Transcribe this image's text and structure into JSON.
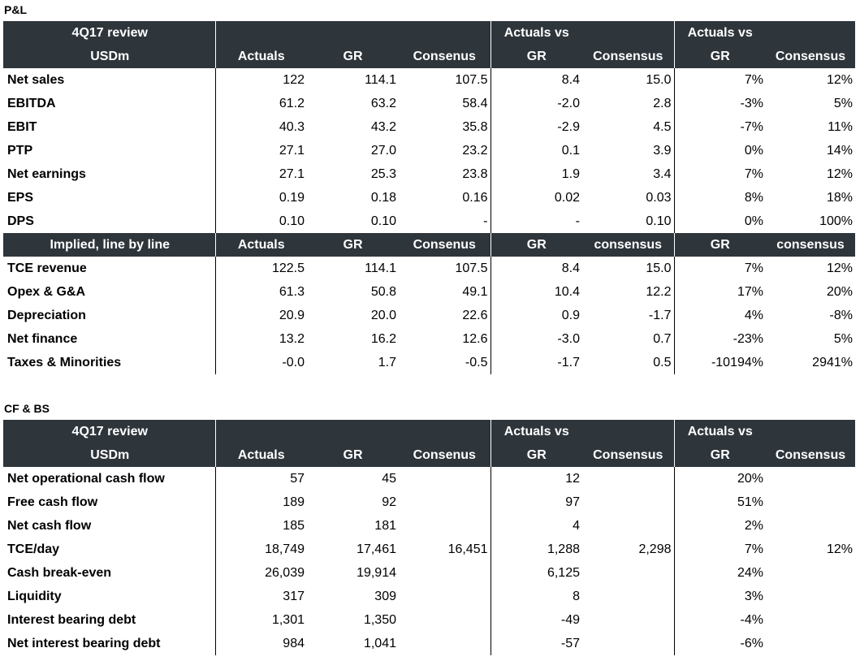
{
  "pl": {
    "section_label": "P&L",
    "header1": [
      "4Q17 review",
      "",
      "",
      "",
      "Actuals vs",
      "",
      "Actuals vs",
      ""
    ],
    "header2": [
      "USDm",
      "Actuals",
      "GR",
      "Consenus",
      "GR",
      "Consensus",
      "GR",
      "Consensus"
    ],
    "rows": [
      [
        "Net sales",
        "122",
        "114.1",
        "107.5",
        "8.4",
        "15.0",
        "7%",
        "12%"
      ],
      [
        "EBITDA",
        "61.2",
        "63.2",
        "58.4",
        "-2.0",
        "2.8",
        "-3%",
        "5%"
      ],
      [
        "EBIT",
        "40.3",
        "43.2",
        "35.8",
        "-2.9",
        "4.5",
        "-7%",
        "11%"
      ],
      [
        "PTP",
        "27.1",
        "27.0",
        "23.2",
        "0.1",
        "3.9",
        "0%",
        "14%"
      ],
      [
        "Net earnings",
        "27.1",
        "25.3",
        "23.8",
        "1.9",
        "3.4",
        "7%",
        "12%"
      ],
      [
        "EPS",
        "0.19",
        "0.18",
        "0.16",
        "0.02",
        "0.03",
        "8%",
        "18%"
      ],
      [
        "DPS",
        "0.10",
        "0.10",
        "-",
        "-",
        "0.10",
        "0%",
        "100%"
      ]
    ],
    "header3": [
      "Implied, line by line",
      "Actuals",
      "GR",
      "Consenus",
      "GR",
      "consensus",
      "GR",
      "consensus"
    ],
    "rows2": [
      [
        "TCE revenue",
        "122.5",
        "114.1",
        "107.5",
        "8.4",
        "15.0",
        "7%",
        "12%"
      ],
      [
        "Opex & G&A",
        "61.3",
        "50.8",
        "49.1",
        "10.4",
        "12.2",
        "17%",
        "20%"
      ],
      [
        "Depreciation",
        "20.9",
        "20.0",
        "22.6",
        "0.9",
        "-1.7",
        "4%",
        "-8%"
      ],
      [
        "Net finance",
        "13.2",
        "16.2",
        "12.6",
        "-3.0",
        "0.7",
        "-23%",
        "5%"
      ],
      [
        "Taxes & Minorities",
        "-0.0",
        "1.7",
        "-0.5",
        "-1.7",
        "0.5",
        "-10194%",
        "2941%"
      ]
    ]
  },
  "cfbs": {
    "section_label": "CF & BS",
    "header1": [
      "4Q17 review",
      "",
      "",
      "",
      "Actuals vs",
      "",
      "Actuals vs",
      ""
    ],
    "header2": [
      "USDm",
      "Actuals",
      "GR",
      "Consenus",
      "GR",
      "Consensus",
      "GR",
      "Consensus"
    ],
    "rows": [
      [
        "Net operational cash flow",
        "57",
        "45",
        "",
        "12",
        "",
        "20%",
        ""
      ],
      [
        "Free cash flow",
        "189",
        "92",
        "",
        "97",
        "",
        "51%",
        ""
      ],
      [
        "Net cash flow",
        "185",
        "181",
        "",
        "4",
        "",
        "2%",
        ""
      ],
      [
        "TCE/day",
        "18,749",
        "17,461",
        "16,451",
        "1,288",
        "2,298",
        "7%",
        "12%"
      ],
      [
        "Cash break-even",
        "26,039",
        "19,914",
        "",
        "6,125",
        "",
        "24%",
        ""
      ],
      [
        "Liquidity",
        "317",
        "309",
        "",
        "8",
        "",
        "3%",
        ""
      ],
      [
        "Interest bearing debt",
        "1,301",
        "1,350",
        "",
        "-49",
        "",
        "-4%",
        ""
      ],
      [
        "Net interest bearing debt",
        "984",
        "1,041",
        "",
        "-57",
        "",
        "-6%",
        ""
      ]
    ]
  }
}
